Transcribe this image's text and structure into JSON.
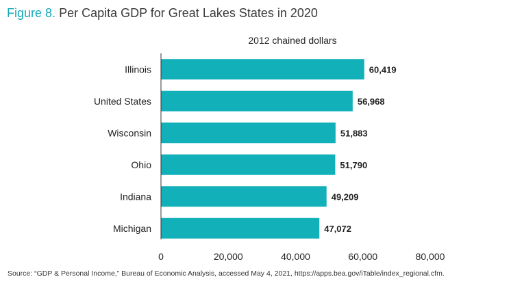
{
  "figure": {
    "number": "Figure 8.",
    "title": "Per Capita GDP for Great Lakes States in 2020"
  },
  "source": "Source: “GDP & Personal Income,” Bureau of Economic Analysis, accessed May 4, 2021, https://apps.bea.gov/iTable/index_regional.cfm.",
  "colors": {
    "bar": "#12b0b9",
    "accent": "#14a8b8"
  },
  "chart_data": {
    "type": "bar",
    "orientation": "horizontal",
    "subtitle": "2012 chained dollars",
    "categories": [
      "Illinois",
      "United States",
      "Wisconsin",
      "Ohio",
      "Indiana",
      "Michigan"
    ],
    "values": [
      60419,
      56968,
      51883,
      51790,
      49209,
      47072
    ],
    "value_labels": [
      "60,419",
      "56,968",
      "51,883",
      "51,790",
      "49,209",
      "47,072"
    ],
    "xlim": [
      0,
      80000
    ],
    "xticks": [
      0,
      20000,
      40000,
      60000,
      80000
    ],
    "xtick_labels": [
      "0",
      "20,000",
      "40,000",
      "60,000",
      "80,000"
    ],
    "grid": false,
    "legend": "none"
  }
}
